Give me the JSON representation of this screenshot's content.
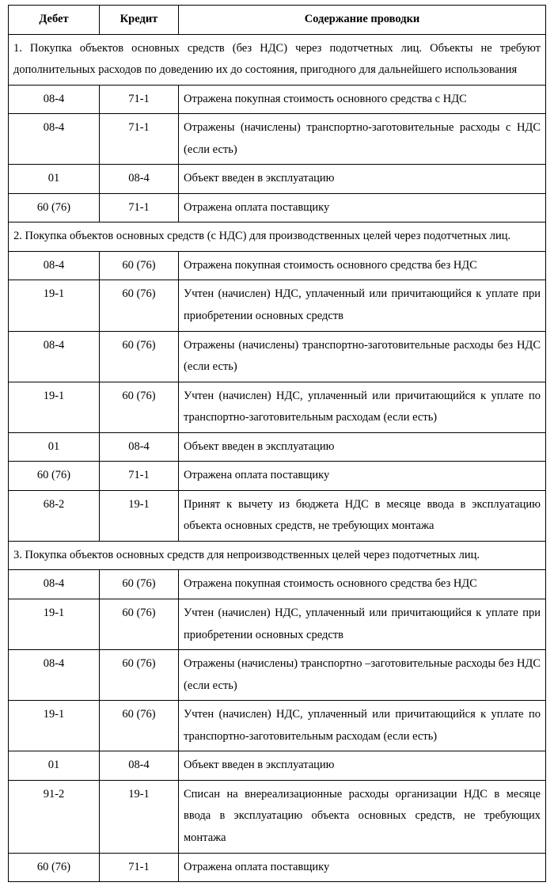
{
  "headers": {
    "debet": "Дебет",
    "kredit": "Кредит",
    "desc": "Содержание проводки"
  },
  "sections": [
    {
      "title": "1. Покупка объектов основных средств (без НДС) через подотчетных лиц. Объекты не требуют дополнительных расходов по доведению их до состояния, пригодного для дальнейшего использования",
      "rows": [
        {
          "d": "08-4",
          "k": "71-1",
          "t": "Отражена покупная стоимость основного средства с НДС"
        },
        {
          "d": "08-4",
          "k": "71-1",
          "t": "Отражены (начислены) транспортно-заготовительные расходы с НДС (если есть)"
        },
        {
          "d": "01",
          "k": "08-4",
          "t": "Объект введен в эксплуатацию"
        },
        {
          "d": "60 (76)",
          "k": "71-1",
          "t": "Отражена оплата поставщику"
        }
      ]
    },
    {
      "title": "2. Покупка объектов основных средств (с НДС) для производственных целей через подотчетных лиц.",
      "rows": [
        {
          "d": "08-4",
          "k": "60 (76)",
          "t": "Отражена покупная стоимость основного средства без НДС"
        },
        {
          "d": "19-1",
          "k": "60 (76)",
          "t": "Учтен (начислен) НДС, уплаченный или причитающийся к уплате при приобретении основных средств"
        },
        {
          "d": "08-4",
          "k": "60 (76)",
          "t": "Отражены (начислены) транспортно-заготовительные расходы без НДС (если есть)"
        },
        {
          "d": "19-1",
          "k": "60 (76)",
          "t": "Учтен (начислен) НДС, уплаченный или причитающийся к уплате по транспортно-заготовительным расходам (если есть)"
        },
        {
          "d": "01",
          "k": "08-4",
          "t": "Объект введен в эксплуатацию"
        },
        {
          "d": "60 (76)",
          "k": "71-1",
          "t": "Отражена оплата поставщику"
        },
        {
          "d": "68-2",
          "k": "19-1",
          "t": "Принят к вычету из бюджета НДС в месяце ввода в эксплуатацию объекта основных средств, не требующих монтажа"
        }
      ]
    },
    {
      "title": "3. Покупка объектов основных средств для непроизводственных целей через подотчетных лиц.",
      "rows": [
        {
          "d": "08-4",
          "k": "60 (76)",
          "t": "Отражена покупная стоимость основного средства без НДС"
        },
        {
          "d": "19-1",
          "k": "60 (76)",
          "t": "Учтен (начислен) НДС, уплаченный или причитающийся к уплате при приобретении основных средств"
        },
        {
          "d": "08-4",
          "k": "60 (76)",
          "t": "Отражены (начислены) транспортно –заготовительные расходы без НДС (если есть)"
        },
        {
          "d": "19-1",
          "k": "60 (76)",
          "t": "Учтен (начислен) НДС, уплаченный или причитающийся к уплате по транспортно-заготовительным расходам (если есть)"
        },
        {
          "d": "01",
          "k": "08-4",
          "t": "Объект введен в эксплуатацию"
        },
        {
          "d": "91-2",
          "k": "19-1",
          "t": "Списан на внереализационные расходы организации НДС в месяце ввода в эксплуатацию объекта основных средств, не требующих монтажа"
        },
        {
          "d": "60 (76)",
          "k": "71-1",
          "t": "Отражена оплата поставщику"
        }
      ]
    }
  ]
}
